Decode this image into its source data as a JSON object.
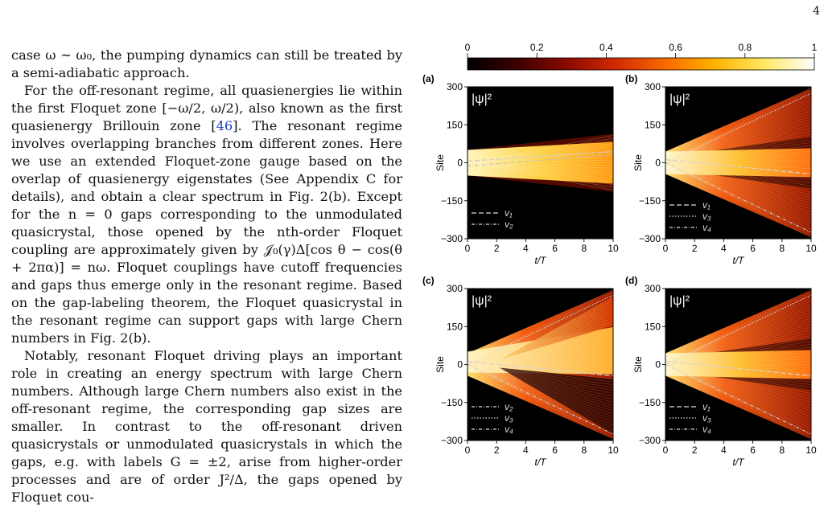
{
  "page": {
    "number": "4"
  },
  "text": {
    "p1": "case ω ∼ ω₀, the pumping dynamics can still be treated by a semi-adiabatic approach.",
    "p2_a": "For the off-resonant regime, all quasienergies lie within the first Floquet zone [−ω/2, ω/2), also known as the first quasienergy Brillouin zone [",
    "p2_cite": "46",
    "p2_b": "]. The resonant regime involves overlapping branches from different zones. Here we use an extended Floquet-zone gauge based on the overlap of quasienergy eigenstates (See Appendix C for details), and obtain a clear spectrum in Fig. 2(b). Except for the n = 0 gaps corresponding to the unmodulated quasicrystal, those opened by the nth-order Floquet coupling are approximately given by 𝒥₀(γ)Δ[cos θ − cos(θ + 2πα)] = nω. Floquet couplings have cutoff frequencies and gaps thus emerge only in the resonant regime. Based on the gap-labeling theorem, the Floquet quasicrystal in the resonant regime can support gaps with large Chern numbers in Fig. 2(b).",
    "p3": "Notably, resonant Floquet driving plays an important role in creating an energy spectrum with large Chern numbers. Although large Chern numbers also exist in the off-resonant regime, the corresponding gap sizes are smaller. In contrast to the off-resonant driven quasicrystals or unmodulated quasicrystals in which the gaps, e.g. with labels G = ±2, arise from higher-order processes and are of order J²/Δ, the gaps opened by Floquet cou-"
  },
  "colorbar": {
    "ticks": [
      "0",
      "0.2",
      "0.4",
      "0.6",
      "0.8",
      "1"
    ],
    "colors": [
      "#000000",
      "#3d0000",
      "#8a0a00",
      "#d22a00",
      "#f86a00",
      "#ffb300",
      "#ffe866",
      "#ffffff"
    ]
  },
  "panels": [
    {
      "label": "(a)",
      "title": "|ψ|²",
      "ylabel": "Site",
      "xlabel": "t/T",
      "legend": [
        "v₁",
        "v₂"
      ],
      "legend_styles": [
        "dashed",
        "dashdot"
      ]
    },
    {
      "label": "(b)",
      "title": "|ψ|²",
      "ylabel": "Site",
      "xlabel": "t/T",
      "legend": [
        "v₁",
        "v₃",
        "v₄"
      ],
      "legend_styles": [
        "dashed",
        "dotted",
        "dashdot"
      ]
    },
    {
      "label": "(c)",
      "title": "|ψ|²",
      "ylabel": "Site",
      "xlabel": "t/T",
      "legend": [
        "v₂",
        "v₃",
        "v₄"
      ],
      "legend_styles": [
        "dashdot",
        "dotted",
        "dashdot"
      ]
    },
    {
      "label": "(d)",
      "title": "|ψ|²",
      "ylabel": "Site",
      "xlabel": "t/T",
      "legend": [
        "v₁",
        "v₃",
        "v₄"
      ],
      "legend_styles": [
        "dashed",
        "dotted",
        "dashdot"
      ]
    }
  ],
  "axes": {
    "x_ticks": [
      "0",
      "2",
      "4",
      "6",
      "8",
      "10"
    ],
    "y_ticks": [
      "300",
      "150",
      "0",
      "−150",
      "−300"
    ]
  }
}
